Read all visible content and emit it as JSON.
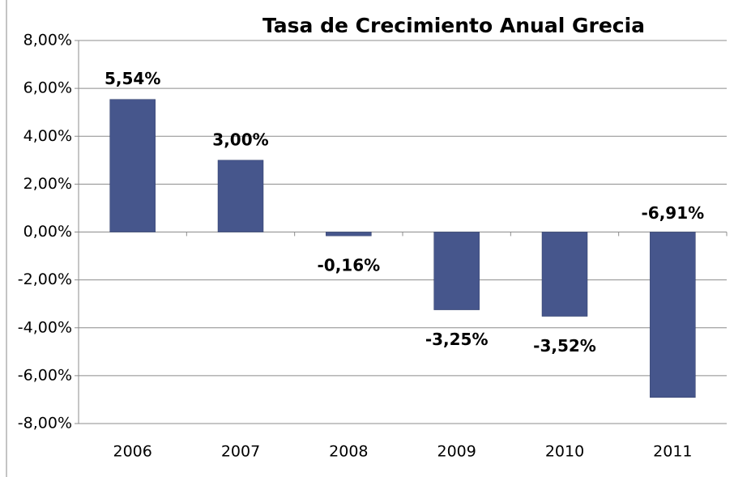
{
  "chart_data": {
    "type": "bar",
    "title": "Tasa de Crecimiento Anual Grecia",
    "categories": [
      "2006",
      "2007",
      "2008",
      "2009",
      "2010",
      "2011"
    ],
    "values": [
      5.54,
      3.0,
      -0.16,
      -3.25,
      -3.52,
      -6.91
    ],
    "value_labels": [
      "5,54%",
      "3,00%",
      "-0,16%",
      "-3,25%",
      "-3,52%",
      "-6,91%"
    ],
    "color": "#46568c",
    "ylim": [
      -8,
      8
    ],
    "yticks": [
      {
        "value": -8,
        "label": "-8,00%"
      },
      {
        "value": -6,
        "label": "-6,00%"
      },
      {
        "value": -4,
        "label": "-4,00%"
      },
      {
        "value": -2,
        "label": "-2,00%"
      },
      {
        "value": 0,
        "label": "0,00%"
      },
      {
        "value": 2,
        "label": "2,00%"
      },
      {
        "value": 4,
        "label": "4,00%"
      },
      {
        "value": 6,
        "label": "6,00%"
      },
      {
        "value": 8,
        "label": "8,00%"
      }
    ],
    "grid": true
  }
}
